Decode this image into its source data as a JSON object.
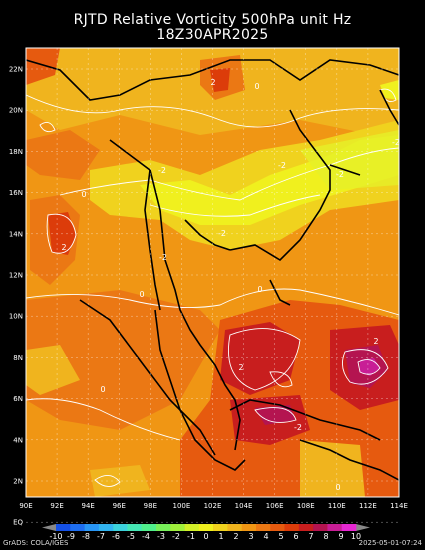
{
  "title_line1": "RJTD Relative Vorticity 500hPa unit Hz",
  "title_line2": "18Z30APR2025",
  "lat_labels": [
    "22N",
    "20N",
    "18N",
    "16N",
    "14N",
    "12N",
    "10N",
    "8N",
    "6N",
    "4N",
    "2N",
    "EQ"
  ],
  "lon_labels": [
    "90E",
    "92E",
    "94E",
    "96E",
    "98E",
    "100E",
    "102E",
    "104E",
    "106E",
    "108E",
    "110E",
    "112E",
    "114E"
  ],
  "colorbar_labels": [
    "-10",
    "-9",
    "-8",
    "-7",
    "-6",
    "-5",
    "-4",
    "-3",
    "-2",
    "-1",
    "0",
    "1",
    "2",
    "3",
    "4",
    "5",
    "6",
    "7",
    "8",
    "9",
    "10"
  ],
  "colorbar_colors": [
    "#1450e6",
    "#1e6ef0",
    "#2896f5",
    "#32b4f0",
    "#3cd2dc",
    "#46e6b4",
    "#50f08c",
    "#78f05a",
    "#a0f03c",
    "#d2f028",
    "#f0f01e",
    "#f0d21e",
    "#f0b41e",
    "#f09614",
    "#eb7814",
    "#e65a0f",
    "#dc3c0a",
    "#c81e1e",
    "#b41450",
    "#c81e96",
    "#e628d2"
  ],
  "contour_labels": [
    "0",
    "2",
    "-2",
    "-2",
    "-2",
    "-2",
    "0",
    "2",
    "-2",
    "-2",
    "0",
    "2",
    "0",
    "0",
    "2",
    "-2",
    "0"
  ],
  "footer_left": "GrADS: COLA/IGES",
  "footer_right": "2025-05-01-07:24"
}
